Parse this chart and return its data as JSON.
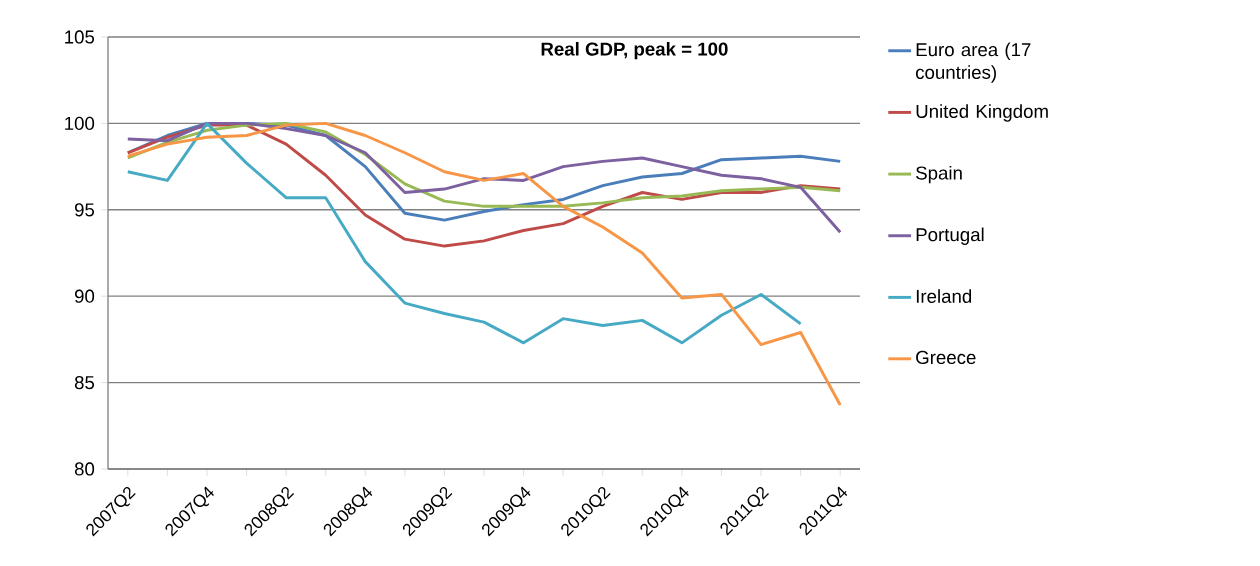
{
  "chart_data": {
    "type": "line",
    "title": "Real GDP, peak = 100",
    "categories": [
      "2007Q2",
      null,
      "2007Q4",
      null,
      "2008Q2",
      null,
      "2008Q4",
      null,
      "2009Q2",
      null,
      "2009Q4",
      null,
      "2010Q2",
      null,
      "2010Q4",
      null,
      "2011Q2",
      null,
      "2011Q4"
    ],
    "series": [
      {
        "name": "Euro area (17 countries)",
        "color": "#4a7ebb",
        "values": [
          98.3,
          99.3,
          100,
          100,
          99.9,
          99.3,
          97.5,
          94.8,
          94.4,
          94.9,
          95.3,
          95.6,
          96.4,
          96.9,
          97.1,
          97.9,
          98.0,
          98.1,
          97.8
        ]
      },
      {
        "name": "United Kingdom",
        "color": "#be4b48",
        "values": [
          98.3,
          99.2,
          99.9,
          99.9,
          98.8,
          97.0,
          94.7,
          93.3,
          92.9,
          93.2,
          93.8,
          94.2,
          95.2,
          96.0,
          95.6,
          96.0,
          96.0,
          96.4,
          96.2
        ]
      },
      {
        "name": "Spain",
        "color": "#98b954",
        "values": [
          98.0,
          98.9,
          99.6,
          99.9,
          100.0,
          99.5,
          98.2,
          96.5,
          95.5,
          95.2,
          95.2,
          95.2,
          95.4,
          95.7,
          95.8,
          96.1,
          96.2,
          96.3,
          96.1
        ]
      },
      {
        "name": "Portugal",
        "color": "#7d60a0",
        "values": [
          99.1,
          99.0,
          100.0,
          100.0,
          99.7,
          99.3,
          98.3,
          96.0,
          96.2,
          96.8,
          96.7,
          97.5,
          97.8,
          98.0,
          97.5,
          97.0,
          96.8,
          96.3,
          93.7
        ]
      },
      {
        "name": "Ireland",
        "color": "#46aac5",
        "values": [
          97.2,
          96.7,
          100.0,
          97.7,
          95.7,
          95.7,
          92.0,
          89.6,
          89.0,
          88.5,
          87.3,
          88.7,
          88.3,
          88.6,
          87.3,
          88.9,
          90.1,
          88.4,
          null
        ]
      },
      {
        "name": "Greece",
        "color": "#f79646",
        "values": [
          98.1,
          98.8,
          99.2,
          99.3,
          99.9,
          100.0,
          99.3,
          98.3,
          97.2,
          96.7,
          97.1,
          95.2,
          94.0,
          92.5,
          89.9,
          90.1,
          87.2,
          87.9,
          83.7
        ]
      }
    ],
    "ylim": [
      80,
      105
    ],
    "yticks": [
      80,
      85,
      90,
      95,
      100,
      105
    ],
    "grid": "y",
    "legend": "right",
    "marker": "none",
    "line_style": "solid"
  }
}
